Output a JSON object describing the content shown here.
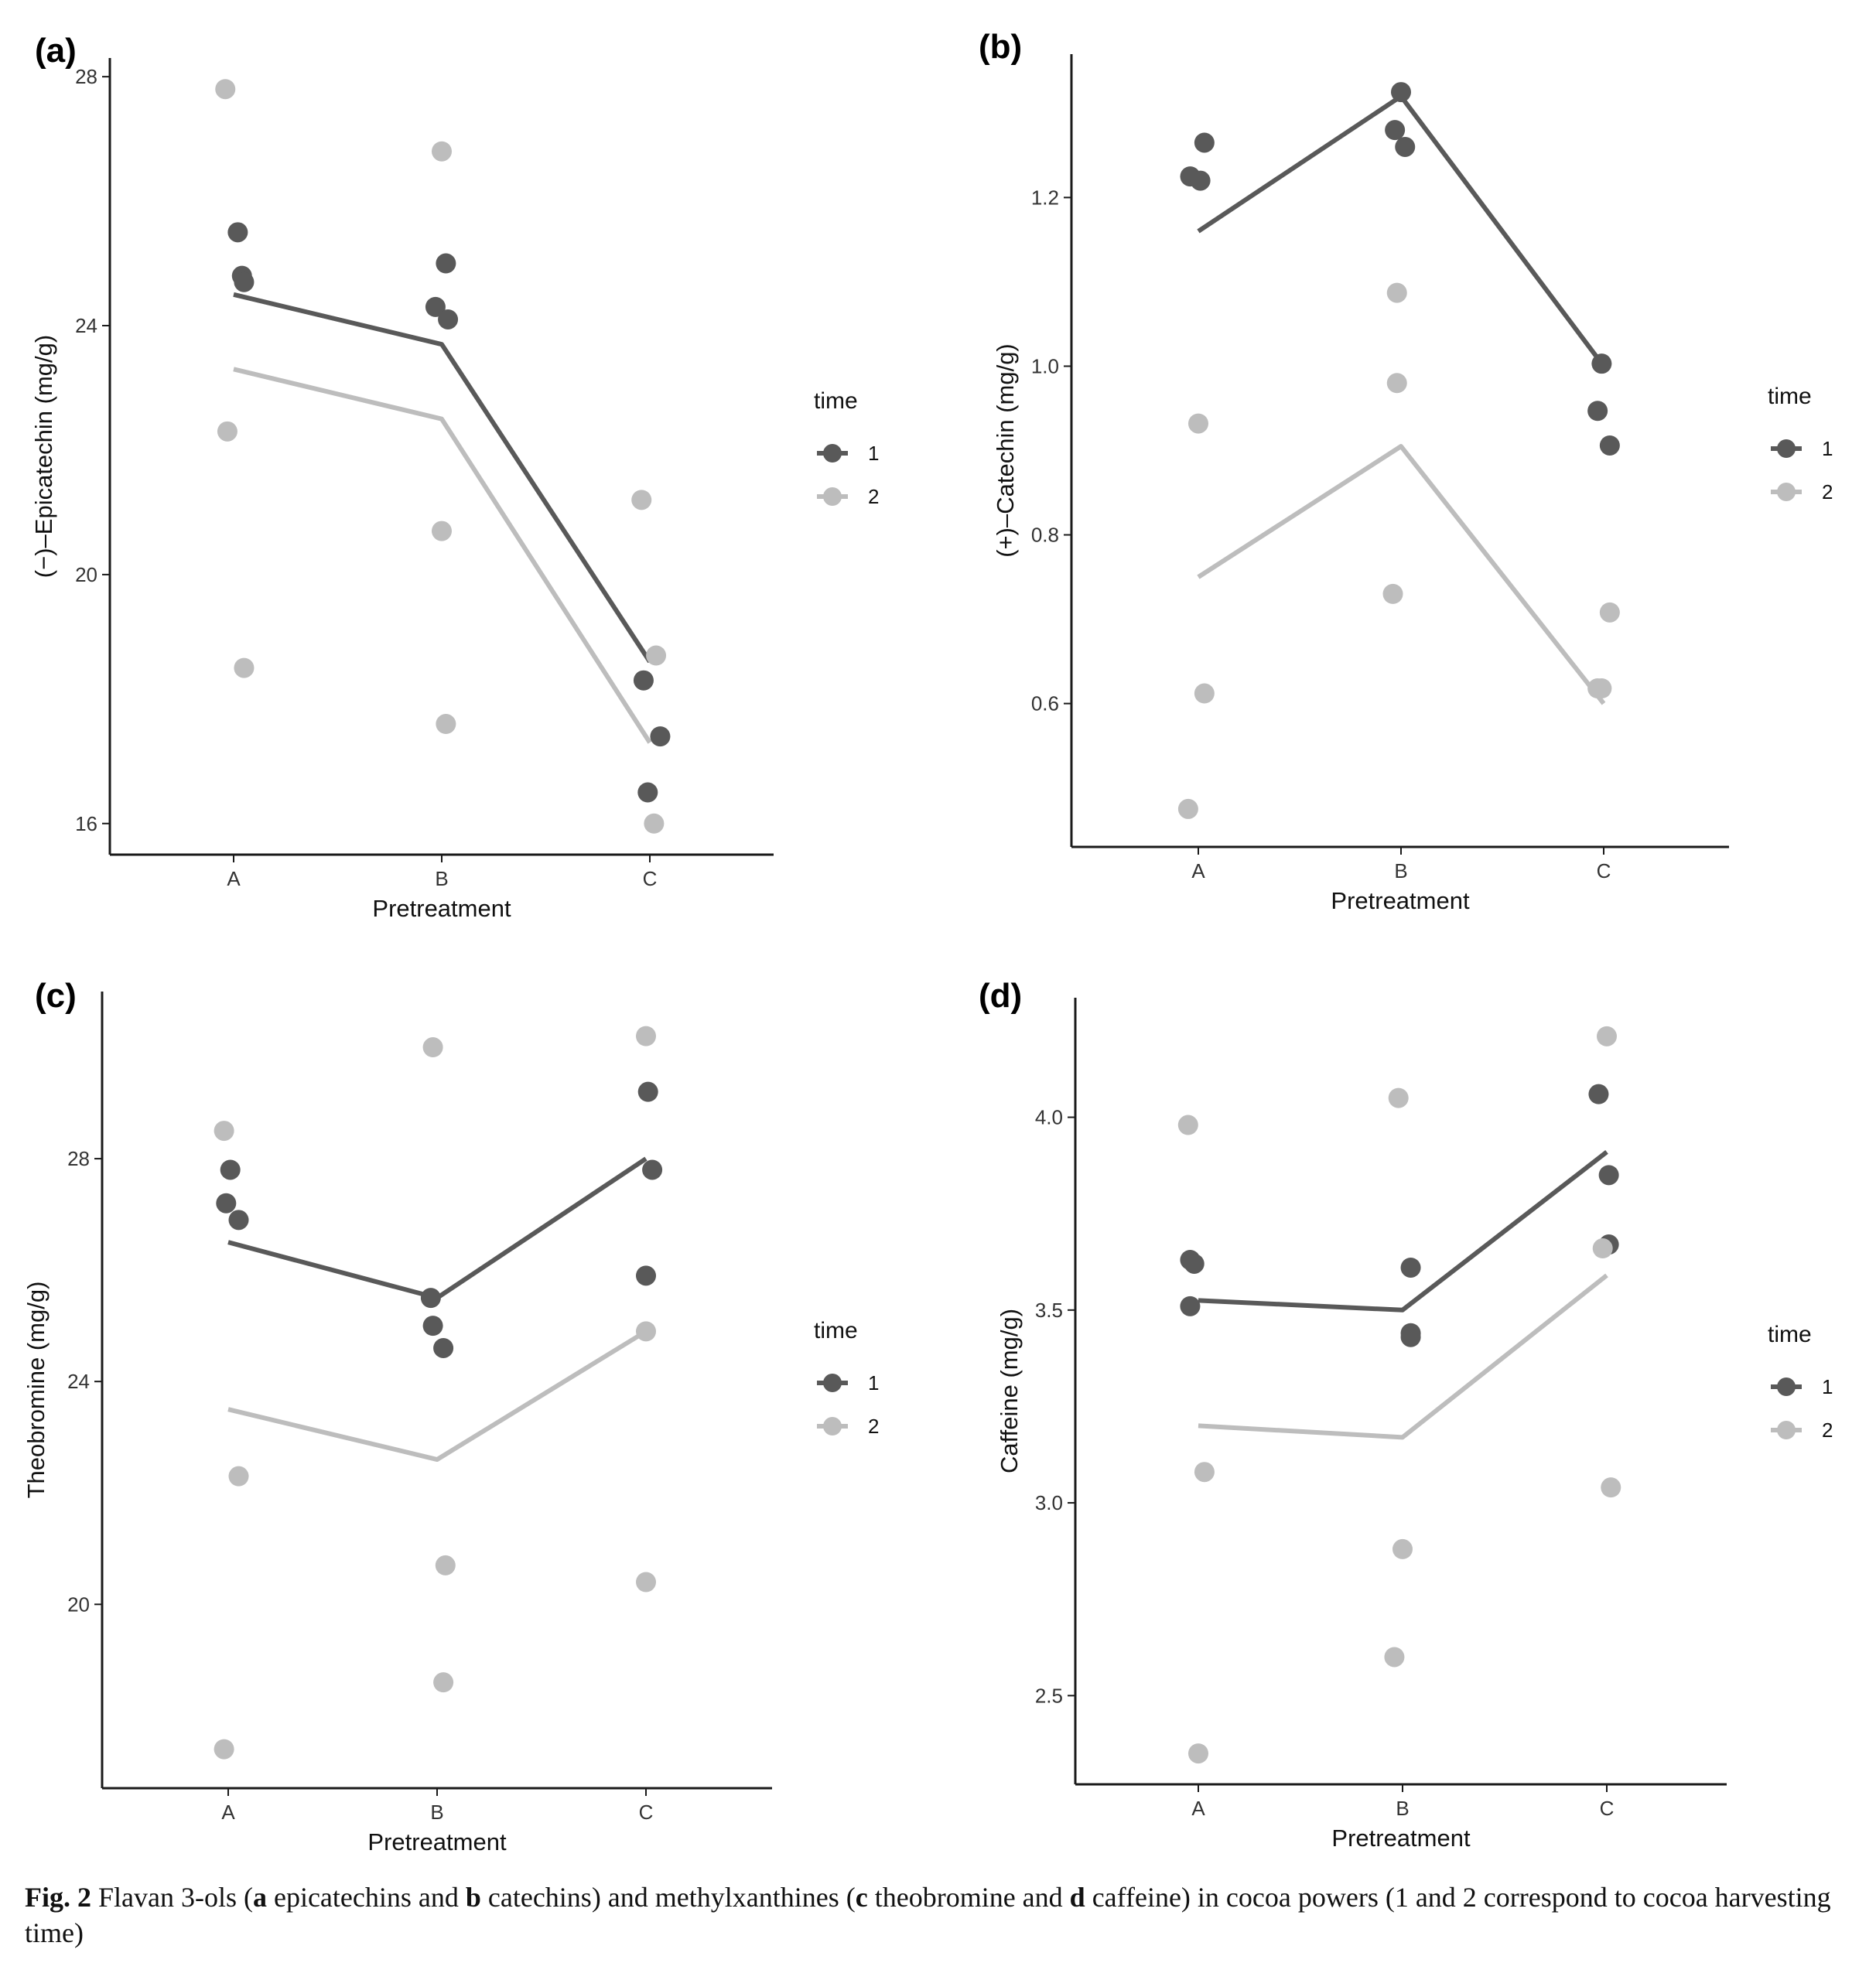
{
  "chart_data": [
    {
      "type": "line+scatter",
      "panel_label": "(a)",
      "xlabel": "Pretreatment",
      "ylabel": "(−)–Epicatechin (mg/g)",
      "categories": [
        "A",
        "B",
        "C"
      ],
      "ylim": [
        15.5,
        28.3
      ],
      "yticks": [
        16,
        20,
        24,
        28
      ],
      "ytick_labels": [
        "16",
        "20",
        "24",
        "28"
      ],
      "legend": {
        "title": "time",
        "entries": [
          "1",
          "2"
        ]
      },
      "series": [
        {
          "name": "1",
          "color": "#595959",
          "line": [
            24.5,
            23.7,
            18.6
          ],
          "points": [
            {
              "x": "A",
              "dx": 0.02,
              "y": 25.5
            },
            {
              "x": "A",
              "dx": 0.04,
              "y": 24.8
            },
            {
              "x": "A",
              "dx": 0.05,
              "y": 24.7
            },
            {
              "x": "B",
              "dx": -0.03,
              "y": 24.3
            },
            {
              "x": "B",
              "dx": 0.02,
              "y": 25.0
            },
            {
              "x": "B",
              "dx": 0.03,
              "y": 24.1
            },
            {
              "x": "C",
              "dx": -0.03,
              "y": 18.3
            },
            {
              "x": "C",
              "dx": -0.01,
              "y": 16.5
            },
            {
              "x": "C",
              "dx": 0.05,
              "y": 17.4
            }
          ]
        },
        {
          "name": "2",
          "color": "#bdbdbd",
          "line": [
            23.3,
            22.5,
            17.3
          ],
          "points": [
            {
              "x": "A",
              "dx": -0.04,
              "y": 27.8
            },
            {
              "x": "A",
              "dx": -0.03,
              "y": 22.3
            },
            {
              "x": "A",
              "dx": 0.05,
              "y": 18.5
            },
            {
              "x": "B",
              "dx": 0.0,
              "y": 26.8
            },
            {
              "x": "B",
              "dx": 0.0,
              "y": 20.7
            },
            {
              "x": "B",
              "dx": 0.02,
              "y": 17.6
            },
            {
              "x": "C",
              "dx": -0.04,
              "y": 21.2
            },
            {
              "x": "C",
              "dx": 0.03,
              "y": 18.7
            },
            {
              "x": "C",
              "dx": 0.02,
              "y": 16.0
            }
          ]
        }
      ]
    },
    {
      "type": "line+scatter",
      "panel_label": "(b)",
      "xlabel": "Pretreatment",
      "ylabel": "(+)–Catechin (mg/g)",
      "categories": [
        "A",
        "B",
        "C"
      ],
      "ylim": [
        0.43,
        1.37
      ],
      "yticks": [
        0.6,
        0.8,
        1.0,
        1.2
      ],
      "ytick_labels": [
        "0.6",
        "0.8",
        "1.0",
        "1.2"
      ],
      "legend": {
        "title": "time",
        "entries": [
          "1",
          "2"
        ]
      },
      "series": [
        {
          "name": "1",
          "color": "#595959",
          "line": [
            1.16,
            1.32,
            1.0
          ],
          "points": [
            {
              "x": "A",
              "dx": -0.04,
              "y": 1.225
            },
            {
              "x": "A",
              "dx": 0.01,
              "y": 1.22
            },
            {
              "x": "A",
              "dx": 0.03,
              "y": 1.265
            },
            {
              "x": "B",
              "dx": -0.03,
              "y": 1.28
            },
            {
              "x": "B",
              "dx": 0.0,
              "y": 1.325
            },
            {
              "x": "B",
              "dx": 0.02,
              "y": 1.26
            },
            {
              "x": "C",
              "dx": -0.03,
              "y": 0.947
            },
            {
              "x": "C",
              "dx": -0.01,
              "y": 1.003
            },
            {
              "x": "C",
              "dx": 0.03,
              "y": 0.906
            }
          ]
        },
        {
          "name": "2",
          "color": "#bdbdbd",
          "line": [
            0.75,
            0.905,
            0.6
          ],
          "points": [
            {
              "x": "A",
              "dx": 0.0,
              "y": 0.932
            },
            {
              "x": "A",
              "dx": 0.03,
              "y": 0.612
            },
            {
              "x": "A",
              "dx": -0.05,
              "y": 0.475
            },
            {
              "x": "B",
              "dx": -0.04,
              "y": 0.73
            },
            {
              "x": "B",
              "dx": -0.02,
              "y": 0.98
            },
            {
              "x": "B",
              "dx": -0.02,
              "y": 1.087
            },
            {
              "x": "C",
              "dx": -0.03,
              "y": 0.618
            },
            {
              "x": "C",
              "dx": -0.01,
              "y": 0.618
            },
            {
              "x": "C",
              "dx": 0.03,
              "y": 0.708
            }
          ]
        }
      ]
    },
    {
      "type": "line+scatter",
      "panel_label": "(c)",
      "xlabel": "Pretreatment",
      "ylabel": "Theobromine (mg/g)",
      "categories": [
        "A",
        "B",
        "C"
      ],
      "ylim": [
        16.7,
        31.0
      ],
      "yticks": [
        20,
        24,
        28
      ],
      "ytick_labels": [
        "20",
        "24",
        "28"
      ],
      "legend": {
        "title": "time",
        "entries": [
          "1",
          "2"
        ]
      },
      "series": [
        {
          "name": "1",
          "color": "#595959",
          "line": [
            26.5,
            25.5,
            28.0
          ],
          "points": [
            {
              "x": "A",
              "dx": 0.01,
              "y": 27.8
            },
            {
              "x": "A",
              "dx": -0.01,
              "y": 27.2
            },
            {
              "x": "A",
              "dx": 0.05,
              "y": 26.9
            },
            {
              "x": "B",
              "dx": -0.03,
              "y": 25.5
            },
            {
              "x": "B",
              "dx": -0.02,
              "y": 25.0
            },
            {
              "x": "B",
              "dx": 0.03,
              "y": 24.6
            },
            {
              "x": "C",
              "dx": 0.01,
              "y": 29.2
            },
            {
              "x": "C",
              "dx": 0.03,
              "y": 27.8
            },
            {
              "x": "C",
              "dx": 0.0,
              "y": 25.9
            }
          ]
        },
        {
          "name": "2",
          "color": "#bdbdbd",
          "line": [
            23.5,
            22.6,
            24.9
          ],
          "points": [
            {
              "x": "A",
              "dx": -0.02,
              "y": 28.5
            },
            {
              "x": "A",
              "dx": 0.05,
              "y": 22.3
            },
            {
              "x": "A",
              "dx": -0.02,
              "y": 17.4
            },
            {
              "x": "B",
              "dx": -0.02,
              "y": 30.0
            },
            {
              "x": "B",
              "dx": 0.04,
              "y": 20.7
            },
            {
              "x": "B",
              "dx": 0.03,
              "y": 18.6
            },
            {
              "x": "C",
              "dx": 0.0,
              "y": 30.2
            },
            {
              "x": "C",
              "dx": 0.0,
              "y": 24.9
            },
            {
              "x": "C",
              "dx": 0.0,
              "y": 20.4
            }
          ]
        }
      ]
    },
    {
      "type": "line+scatter",
      "panel_label": "(d)",
      "xlabel": "Pretreatment",
      "ylabel": "Caffeine (mg/g)",
      "categories": [
        "A",
        "B",
        "C"
      ],
      "ylim": [
        2.27,
        4.31
      ],
      "yticks": [
        2.5,
        3.0,
        3.5,
        4.0
      ],
      "ytick_labels": [
        "2.5",
        "3.0",
        "3.5",
        "4.0"
      ],
      "legend": {
        "title": "time",
        "entries": [
          "1",
          "2"
        ]
      },
      "series": [
        {
          "name": "1",
          "color": "#595959",
          "line": [
            3.525,
            3.5,
            3.91
          ],
          "points": [
            {
              "x": "A",
              "dx": -0.04,
              "y": 3.63
            },
            {
              "x": "A",
              "dx": -0.02,
              "y": 3.62
            },
            {
              "x": "A",
              "dx": -0.04,
              "y": 3.51
            },
            {
              "x": "B",
              "dx": 0.04,
              "y": 3.61
            },
            {
              "x": "B",
              "dx": 0.04,
              "y": 3.44
            },
            {
              "x": "B",
              "dx": 0.04,
              "y": 3.43
            },
            {
              "x": "C",
              "dx": -0.04,
              "y": 4.06
            },
            {
              "x": "C",
              "dx": 0.01,
              "y": 3.85
            },
            {
              "x": "C",
              "dx": 0.01,
              "y": 3.67
            }
          ]
        },
        {
          "name": "2",
          "color": "#bdbdbd",
          "line": [
            3.2,
            3.17,
            3.59
          ],
          "points": [
            {
              "x": "A",
              "dx": -0.05,
              "y": 3.98
            },
            {
              "x": "A",
              "dx": 0.03,
              "y": 3.08
            },
            {
              "x": "A",
              "dx": 0.0,
              "y": 2.35
            },
            {
              "x": "B",
              "dx": -0.02,
              "y": 4.05
            },
            {
              "x": "B",
              "dx": 0.0,
              "y": 2.88
            },
            {
              "x": "B",
              "dx": -0.04,
              "y": 2.6
            },
            {
              "x": "C",
              "dx": 0.0,
              "y": 4.21
            },
            {
              "x": "C",
              "dx": -0.02,
              "y": 3.66
            },
            {
              "x": "C",
              "dx": 0.02,
              "y": 3.04
            }
          ]
        }
      ]
    }
  ],
  "caption": {
    "fig_label": "Fig. 2",
    "text_1": " Flavan 3-ols (",
    "a": "a",
    "text_2": " epicatechins and ",
    "b": "b",
    "text_3": " catechins) and methylxanthines (",
    "c": "c",
    "text_4": " theobromine and ",
    "d": "d",
    "text_5": " caffeine) in cocoa powers (1 and 2 correspond to cocoa harvesting time)"
  }
}
